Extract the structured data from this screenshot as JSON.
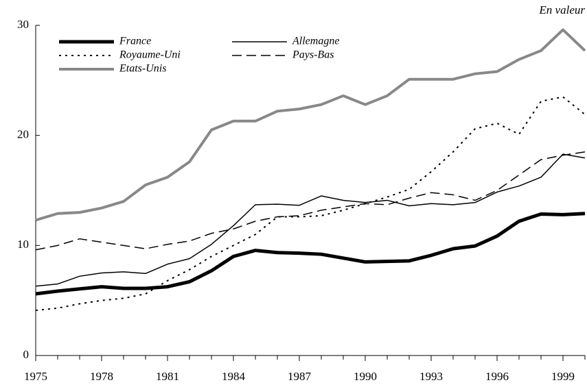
{
  "chart_data": {
    "type": "line",
    "annotation": "En valeur",
    "x": [
      1975,
      1976,
      1977,
      1978,
      1979,
      1980,
      1981,
      1982,
      1983,
      1984,
      1985,
      1986,
      1987,
      1988,
      1989,
      1990,
      1991,
      1992,
      1993,
      1994,
      1995,
      1996,
      1997,
      1998,
      1999,
      2000
    ],
    "xlim": [
      1975,
      2000
    ],
    "xticks": [
      1975,
      1978,
      1981,
      1984,
      1987,
      1990,
      1993,
      1996,
      1999
    ],
    "ylim": [
      0,
      30
    ],
    "yticks": [
      0,
      10,
      20,
      30
    ],
    "legend": "top-left",
    "series": [
      {
        "name": "France",
        "color": "#000000",
        "width": 5,
        "dash": "none",
        "values": [
          5.6,
          5.85,
          6.05,
          6.25,
          6.1,
          6.1,
          6.25,
          6.7,
          7.7,
          9.0,
          9.55,
          9.35,
          9.3,
          9.2,
          8.85,
          8.5,
          8.55,
          8.6,
          9.1,
          9.7,
          9.95,
          10.85,
          12.2,
          12.85,
          12.8,
          12.9
        ]
      },
      {
        "name": "Allemagne",
        "color": "#000000",
        "width": 1.5,
        "dash": "none",
        "values": [
          6.3,
          6.5,
          7.2,
          7.5,
          7.6,
          7.45,
          8.3,
          8.8,
          10.1,
          11.8,
          13.7,
          13.75,
          13.65,
          14.5,
          14.1,
          13.9,
          14.1,
          13.6,
          13.8,
          13.7,
          13.9,
          14.85,
          15.4,
          16.2,
          18.3,
          17.95
        ]
      },
      {
        "name": "Royaume-Uni",
        "color": "#000000",
        "width": 2,
        "dash": "3 6",
        "values": [
          4.1,
          4.3,
          4.7,
          5.0,
          5.2,
          5.6,
          6.8,
          7.8,
          9.0,
          10.0,
          11.0,
          12.6,
          12.6,
          12.7,
          13.2,
          13.8,
          14.4,
          15.1,
          16.7,
          18.5,
          20.6,
          21.1,
          20.1,
          23.1,
          23.5,
          21.9
        ]
      },
      {
        "name": "Pays-Bas",
        "color": "#000000",
        "width": 1.5,
        "dash": "14 7",
        "values": [
          9.6,
          10.0,
          10.6,
          10.3,
          10.0,
          9.7,
          10.1,
          10.4,
          11.1,
          11.5,
          12.2,
          12.6,
          12.7,
          13.2,
          13.5,
          13.8,
          13.7,
          14.3,
          14.8,
          14.6,
          14.1,
          15.0,
          16.4,
          17.8,
          18.2,
          18.5
        ]
      },
      {
        "name": "Etats-Unis",
        "color": "#888888",
        "width": 4,
        "dash": "none",
        "values": [
          12.3,
          12.9,
          13.0,
          13.4,
          14.0,
          15.5,
          16.2,
          17.6,
          20.5,
          21.3,
          21.3,
          22.2,
          22.4,
          22.8,
          23.6,
          22.8,
          23.6,
          25.1,
          25.1,
          25.1,
          25.6,
          25.8,
          26.9,
          27.7,
          29.6,
          27.7
        ]
      }
    ]
  }
}
